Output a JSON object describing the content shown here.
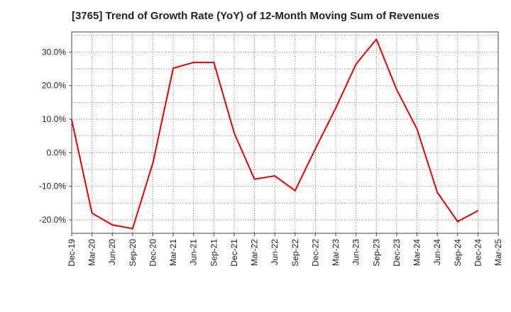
{
  "chart_data": {
    "type": "line",
    "title": "[3765]  Trend of Growth Rate (YoY) of 12-Month Moving Sum of Revenues",
    "xlabel": "",
    "ylabel": "",
    "grid": true,
    "ylim": [
      -24,
      36
    ],
    "yticks": [
      30,
      20,
      10,
      0,
      -10,
      -20
    ],
    "ytick_labels": [
      "30.0%",
      "20.0%",
      "10.0%",
      "0.0%",
      "-10.0%",
      "-20.0%"
    ],
    "x_tick_labels": [
      "Dec-19",
      "Mar-20",
      "Jun-20",
      "Sep-20",
      "Dec-20",
      "Mar-21",
      "Jun-21",
      "Sep-21",
      "Dec-21",
      "Mar-22",
      "Jun-22",
      "Sep-22",
      "Dec-22",
      "Mar-23",
      "Jun-23",
      "Sep-23",
      "Dec-23",
      "Mar-24",
      "Jun-24",
      "Sep-24",
      "Dec-24",
      "Mar-25"
    ],
    "line_color": "#e60000",
    "series": [
      {
        "x": [
          "Dec-19",
          "Mar-20",
          "Jun-20",
          "Sep-20",
          "Dec-20",
          "Mar-21",
          "Jun-21",
          "Sep-21",
          "Dec-21",
          "Mar-22",
          "Jun-22",
          "Sep-22",
          "Dec-22",
          "Mar-23",
          "Jun-23",
          "Sep-23",
          "Dec-23",
          "Mar-24",
          "Jun-24",
          "Sep-24",
          "Dec-24"
        ],
        "values": [
          9.8,
          -18.0,
          -21.5,
          -22.6,
          -3.0,
          25.2,
          26.9,
          26.9,
          5.9,
          -7.9,
          -6.9,
          -11.3,
          1.2,
          13.3,
          26.4,
          33.8,
          18.8,
          7.1,
          -11.8,
          -20.5,
          -17.3
        ]
      }
    ]
  }
}
